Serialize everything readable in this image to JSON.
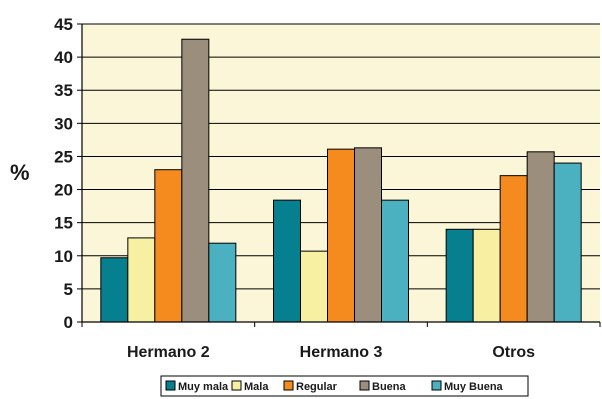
{
  "chart_data": {
    "type": "bar",
    "title": "",
    "xlabel": "",
    "ylabel": "%",
    "ylim": [
      0,
      45
    ],
    "yticks": [
      0,
      5,
      10,
      15,
      20,
      25,
      30,
      35,
      40,
      45
    ],
    "grid": true,
    "legend_position": "bottom",
    "categories": [
      "Hermano 2",
      "Hermano 3",
      "Otros"
    ],
    "series": [
      {
        "name": "Muy mala",
        "color": "#067f8e",
        "values": [
          9.7,
          18.4,
          14.0
        ]
      },
      {
        "name": "Mala",
        "color": "#f7f0a3",
        "values": [
          12.7,
          10.7,
          14.0
        ]
      },
      {
        "name": "Regular",
        "color": "#f58a1f",
        "values": [
          23.0,
          26.1,
          22.1
        ]
      },
      {
        "name": "Buena",
        "color": "#9b8e7c",
        "values": [
          42.7,
          26.3,
          25.7
        ]
      },
      {
        "name": "Muy Buena",
        "color": "#4bb0bf",
        "values": [
          11.9,
          18.4,
          24.0
        ]
      }
    ],
    "plot_background": "#fbf6d8"
  }
}
